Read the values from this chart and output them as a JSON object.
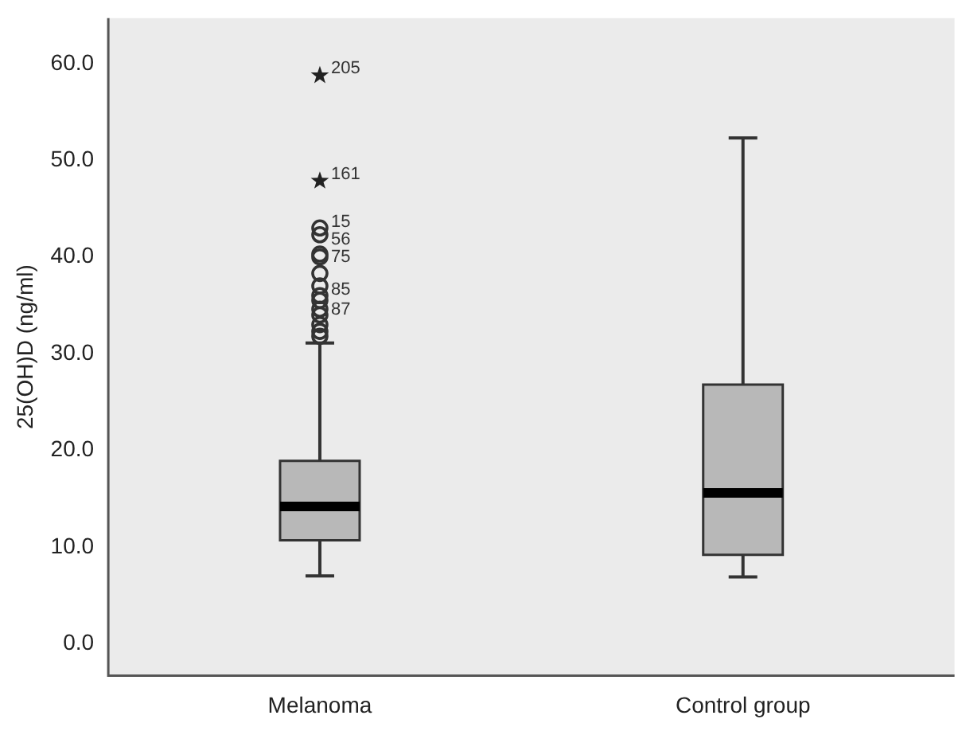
{
  "chart_data": {
    "type": "box",
    "ylabel": "25(OH)D (ng/ml)",
    "categories": [
      "Melanoma",
      "Control group"
    ],
    "boxes": [
      {
        "low": 7.0,
        "q1": 10.7,
        "median": 14.2,
        "q3": 18.9,
        "high": 31.1
      },
      {
        "low": 6.9,
        "q1": 9.2,
        "median": 15.6,
        "q3": 26.8,
        "high": 52.3
      }
    ],
    "color": "#b8b8b8",
    "series": [
      {
        "type": "scatter",
        "marker": "star",
        "color": "#222222",
        "x": [
          "Melanoma",
          "Melanoma"
        ],
        "values": [
          58.9,
          48.0
        ]
      },
      {
        "type": "scatter",
        "marker": "circle",
        "color": "#333333",
        "x": [
          "Melanoma",
          "Melanoma",
          "Melanoma",
          "Melanoma",
          "Melanoma",
          "Melanoma",
          "Melanoma",
          "Melanoma",
          "Melanoma",
          "Melanoma",
          "Melanoma",
          "Melanoma",
          "Melanoma"
        ],
        "values": [
          43.0,
          42.3,
          40.3,
          40.0,
          38.3,
          37.0,
          36.0,
          35.5,
          34.6,
          34.0,
          33.0,
          32.3,
          31.8
        ]
      }
    ],
    "ylim": [
      -3.3,
      64.7
    ],
    "yticks": [
      {
        "value": 0,
        "label": "0.0"
      },
      {
        "value": 10,
        "label": "10.0"
      },
      {
        "value": 20,
        "label": "20.0"
      },
      {
        "value": 30,
        "label": "30.0"
      },
      {
        "value": 40,
        "label": "40.0"
      },
      {
        "value": 50,
        "label": "50.0"
      },
      {
        "value": 60,
        "label": "60.0"
      }
    ],
    "grid": false,
    "legend": false,
    "annotations": [
      {
        "text": "205",
        "x": "Melanoma",
        "y": 58.9
      },
      {
        "text": "161",
        "x": "Melanoma",
        "y": 48.0
      },
      {
        "text": "15",
        "x": "Melanoma",
        "y": 43.0
      },
      {
        "text": "56",
        "x": "Melanoma",
        "y": 42.3
      },
      {
        "text": "75",
        "x": "Melanoma",
        "y": 40.3
      },
      {
        "text": "85",
        "x": "Melanoma",
        "y": 36.0
      },
      {
        "text": "87",
        "x": "Melanoma",
        "y": 34.0
      }
    ]
  }
}
